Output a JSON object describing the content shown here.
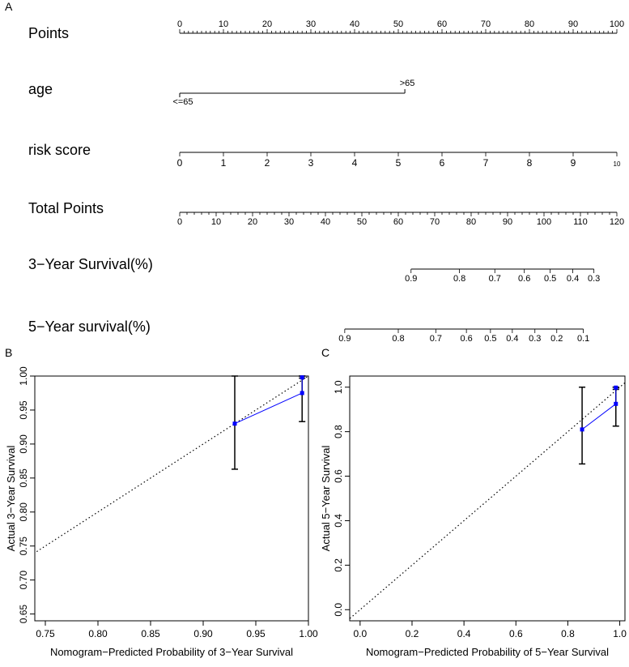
{
  "panel_labels": {
    "a": "A",
    "b": "B",
    "c": "C"
  },
  "nomogram": {
    "rows": [
      {
        "label": "Points",
        "ticks": [
          "0",
          "10",
          "20",
          "30",
          "40",
          "50",
          "60",
          "70",
          "80",
          "90",
          "100"
        ]
      },
      {
        "label": "age",
        "levels": [
          "<=65",
          ">65"
        ]
      },
      {
        "label": "risk score",
        "ticks": [
          "0",
          "1",
          "2",
          "3",
          "4",
          "5",
          "6",
          "7",
          "8",
          "9",
          "10"
        ]
      },
      {
        "label": "Total Points",
        "ticks": [
          "0",
          "10",
          "20",
          "30",
          "40",
          "50",
          "60",
          "70",
          "80",
          "90",
          "100",
          "110",
          "120"
        ]
      },
      {
        "label": "3−Year Survival(%)",
        "ticks": [
          "0.9",
          "0.8",
          "0.7",
          "0.6",
          "0.5",
          "0.4",
          "0.3"
        ]
      },
      {
        "label": "5−Year survival(%)",
        "ticks": [
          "0.9",
          "0.8",
          "0.7",
          "0.6",
          "0.5",
          "0.4",
          "0.3",
          "0.2",
          "0.1"
        ]
      }
    ]
  },
  "chart_data": [
    {
      "type": "nomogram",
      "points_range": [
        0,
        100
      ],
      "total_points_range": [
        0,
        120
      ],
      "age": {
        "levels": [
          "<=65",
          ">65"
        ],
        "points": [
          0,
          51.5
        ]
      },
      "risk_score": {
        "range": [
          0,
          10
        ],
        "points_range": [
          0,
          100
        ]
      },
      "survival_3yr": {
        "probabilities": [
          0.9,
          0.8,
          0.7,
          0.6,
          0.5,
          0.4,
          0.3
        ],
        "total_points": [
          63.5,
          76.8,
          86.5,
          94.6,
          101.7,
          107.9,
          113.7
        ]
      },
      "survival_5yr": {
        "probabilities": [
          0.9,
          0.8,
          0.7,
          0.6,
          0.5,
          0.4,
          0.3,
          0.2,
          0.1
        ],
        "total_points": [
          45.3,
          60.0,
          70.3,
          78.7,
          85.3,
          91.3,
          97.5,
          103.5,
          110.8
        ]
      }
    },
    {
      "type": "scatter",
      "title": "",
      "xlabel": "Nomogram−Predicted Probability of 3−Year Survival",
      "ylabel": "Actual 3−Year Survival",
      "xlim": [
        0.74,
        1.0
      ],
      "ylim": [
        0.64,
        1.0
      ],
      "xticks": [
        "0.75",
        "0.80",
        "0.85",
        "0.90",
        "0.95",
        "1.00"
      ],
      "yticks": [
        "0.65",
        "0.70",
        "0.75",
        "0.80",
        "0.85",
        "0.90",
        "0.95",
        "1.00"
      ],
      "reference_line": "diagonal dotted",
      "series_color": "#0000ff",
      "points": [
        {
          "x": 0.93,
          "y": 0.93,
          "lower": 0.863,
          "upper": 1.0
        },
        {
          "x": 0.994,
          "y": 0.975,
          "lower": 0.933,
          "upper": 1.0
        },
        {
          "x": 0.994,
          "y": 0.998,
          "lower": 0.997,
          "upper": 1.0
        }
      ]
    },
    {
      "type": "scatter",
      "title": "",
      "xlabel": "Nomogram−Predicted Probability of 5−Year Survival",
      "ylabel": "Actual 5−Year Survival",
      "xlim": [
        -0.04,
        1.02
      ],
      "ylim": [
        -0.05,
        1.05
      ],
      "xticks": [
        "0.0",
        "0.2",
        "0.4",
        "0.6",
        "0.8",
        "1.0"
      ],
      "yticks": [
        "0.0",
        "0.2",
        "0.4",
        "0.6",
        "0.8",
        "1.0"
      ],
      "reference_line": "diagonal dotted",
      "series_color": "#0000ff",
      "points": [
        {
          "x": 0.855,
          "y": 0.81,
          "lower": 0.655,
          "upper": 1.0
        },
        {
          "x": 0.985,
          "y": 0.925,
          "lower": 0.825,
          "upper": 1.0
        },
        {
          "x": 0.985,
          "y": 0.998,
          "lower": 0.99,
          "upper": 1.0
        }
      ]
    }
  ]
}
